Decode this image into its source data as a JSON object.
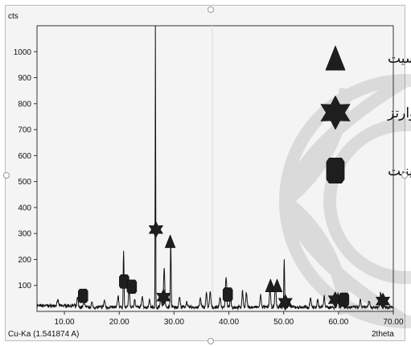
{
  "chart_data": {
    "type": "line",
    "ylabel": "cts",
    "xlabel": "2theta",
    "source_label": "Cu-Ka (1.541874 A)",
    "xlim": [
      5,
      70
    ],
    "ylim": [
      0,
      1100
    ],
    "x_ticks": [
      10,
      20,
      30,
      40,
      50,
      60,
      70
    ],
    "x_tick_labels": [
      "10.00",
      "20.00",
      "30.00",
      "40.00",
      "50.00",
      "60.00",
      "70.00"
    ],
    "y_ticks": [
      100,
      200,
      300,
      400,
      500,
      600,
      700,
      800,
      900,
      1000
    ],
    "y_tick_labels": [
      "100",
      "200",
      "300",
      "400",
      "500",
      "600",
      "700",
      "800",
      "900",
      "1000"
    ],
    "peaks": [
      {
        "x": 8.8,
        "y": 22
      },
      {
        "x": 12.4,
        "y": 38
      },
      {
        "x": 13.6,
        "y": 22
      },
      {
        "x": 15.0,
        "y": 18
      },
      {
        "x": 17.3,
        "y": 26
      },
      {
        "x": 19.8,
        "y": 45
      },
      {
        "x": 20.8,
        "y": 220
      },
      {
        "x": 21.8,
        "y": 70
      },
      {
        "x": 22.8,
        "y": 30
      },
      {
        "x": 24.2,
        "y": 45
      },
      {
        "x": 25.5,
        "y": 30
      },
      {
        "x": 26.6,
        "y": 1100
      },
      {
        "x": 27.6,
        "y": 40
      },
      {
        "x": 28.2,
        "y": 150
      },
      {
        "x": 29.4,
        "y": 270
      },
      {
        "x": 31.0,
        "y": 40
      },
      {
        "x": 32.3,
        "y": 22
      },
      {
        "x": 34.8,
        "y": 35
      },
      {
        "x": 35.9,
        "y": 55
      },
      {
        "x": 36.6,
        "y": 60
      },
      {
        "x": 38.4,
        "y": 40
      },
      {
        "x": 39.5,
        "y": 120
      },
      {
        "x": 40.3,
        "y": 40
      },
      {
        "x": 42.5,
        "y": 60
      },
      {
        "x": 43.2,
        "y": 55
      },
      {
        "x": 45.8,
        "y": 45
      },
      {
        "x": 47.5,
        "y": 70
      },
      {
        "x": 48.5,
        "y": 80
      },
      {
        "x": 50.1,
        "y": 185
      },
      {
        "x": 51.0,
        "y": 30
      },
      {
        "x": 54.9,
        "y": 40
      },
      {
        "x": 56.2,
        "y": 30
      },
      {
        "x": 57.4,
        "y": 40
      },
      {
        "x": 59.9,
        "y": 55
      },
      {
        "x": 60.7,
        "y": 30
      },
      {
        "x": 64.0,
        "y": 28
      },
      {
        "x": 65.6,
        "y": 25
      },
      {
        "x": 67.7,
        "y": 60
      },
      {
        "x": 68.3,
        "y": 30
      }
    ],
    "legend": [
      {
        "label": "کلسیت",
        "marker": "triangle"
      },
      {
        "label": "کوارتز",
        "marker": "star"
      },
      {
        "label": "کائولینیت",
        "marker": "octagon"
      }
    ],
    "markers": [
      {
        "type": "octagon",
        "x": 13.4,
        "y": 60
      },
      {
        "type": "octagon",
        "x": 20.9,
        "y": 115
      },
      {
        "type": "octagon",
        "x": 22.3,
        "y": 95
      },
      {
        "type": "star",
        "x": 26.7,
        "y": 315
      },
      {
        "type": "star",
        "x": 28.1,
        "y": 55
      },
      {
        "type": "triangle",
        "x": 29.3,
        "y": 270
      },
      {
        "type": "octagon",
        "x": 39.8,
        "y": 65
      },
      {
        "type": "triangle",
        "x": 47.6,
        "y": 100
      },
      {
        "type": "triangle",
        "x": 48.8,
        "y": 100
      },
      {
        "type": "star",
        "x": 50.3,
        "y": 35
      },
      {
        "type": "star",
        "x": 59.4,
        "y": 45
      },
      {
        "type": "octagon",
        "x": 61.0,
        "y": 45
      },
      {
        "type": "star",
        "x": 68.1,
        "y": 40
      }
    ]
  }
}
